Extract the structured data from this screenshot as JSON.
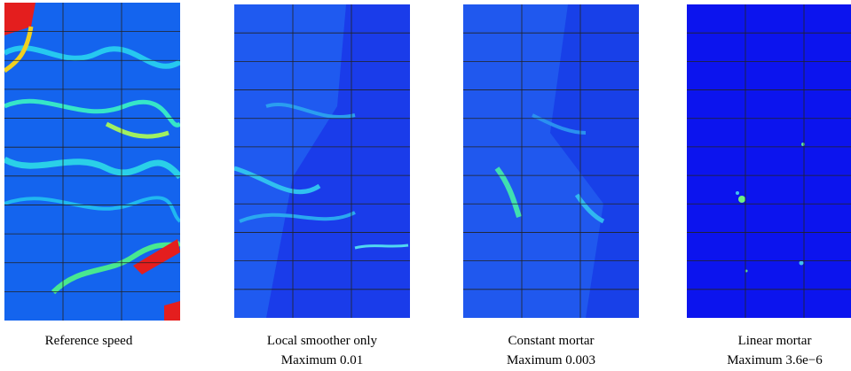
{
  "panels": [
    {
      "caption": [
        "Reference speed"
      ]
    },
    {
      "caption": [
        "Local smoother only",
        "Maximum 0.01"
      ]
    },
    {
      "caption": [
        "Constant mortar",
        "Maximum 0.003"
      ]
    },
    {
      "caption": [
        "Linear mortar",
        "Maximum 3.6e−6"
      ]
    }
  ]
}
